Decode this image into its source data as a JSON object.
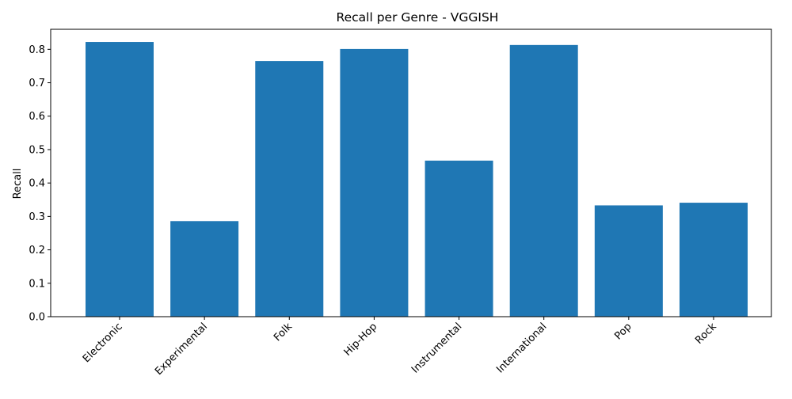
{
  "chart_data": {
    "type": "bar",
    "title": "Recall per Genre - VGGISH",
    "xlabel": "",
    "ylabel": "Recall",
    "categories": [
      "Electronic",
      "Experimental",
      "Folk",
      "Hip-Hop",
      "Instrumental",
      "International",
      "Pop",
      "Rock"
    ],
    "values": [
      0.822,
      0.286,
      0.765,
      0.801,
      0.467,
      0.813,
      0.333,
      0.341
    ],
    "ylim": [
      0,
      0.86
    ],
    "yticks": [
      "0.0",
      "0.1",
      "0.2",
      "0.3",
      "0.4",
      "0.5",
      "0.6",
      "0.7",
      "0.8"
    ],
    "bar_color": "#1f77b4",
    "grid": false,
    "legend": "none"
  }
}
